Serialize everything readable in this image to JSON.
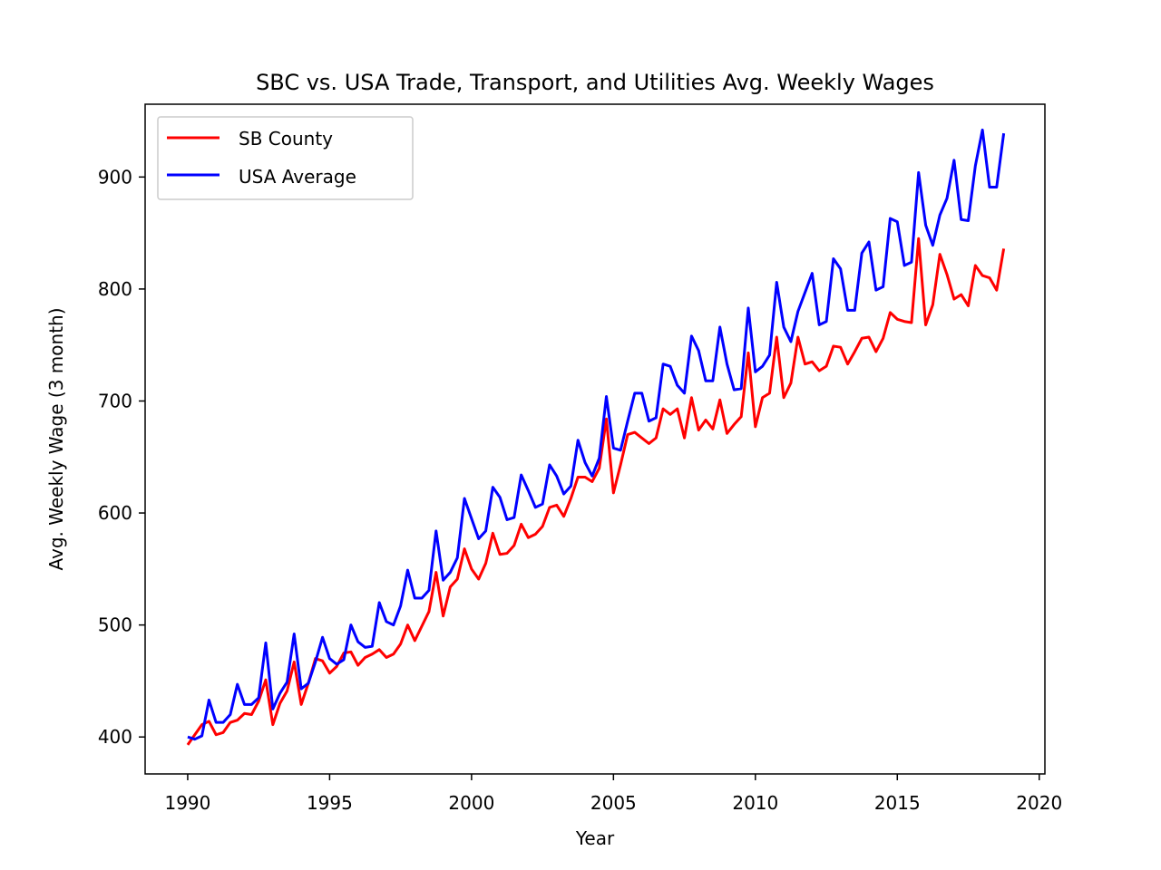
{
  "chart_data": {
    "type": "line",
    "title": "SBC vs. USA Trade, Transport, and Utilities Avg. Weekly Wages",
    "xlabel": "Year",
    "ylabel": "Avg. Weekly Wage (3 month)",
    "xlim": [
      1988.5,
      2020.2
    ],
    "ylim": [
      367,
      965
    ],
    "xticks": [
      1990,
      1995,
      2000,
      2005,
      2010,
      2015,
      2020
    ],
    "yticks": [
      400,
      500,
      600,
      700,
      800,
      900
    ],
    "x_start": 1990.0,
    "x_step": 0.25,
    "legend_position": "top-left",
    "grid": false,
    "series": [
      {
        "name": "SB County",
        "color": "#ff0000",
        "values": [
          393,
          402,
          411,
          414,
          402,
          404,
          413,
          415,
          421,
          420,
          432,
          451,
          411,
          430,
          441,
          467,
          429,
          448,
          470,
          468,
          457,
          463,
          475,
          476,
          464,
          471,
          474,
          478,
          471,
          474,
          483,
          500,
          486,
          499,
          512,
          547,
          508,
          534,
          541,
          568,
          550,
          541,
          555,
          582,
          563,
          564,
          571,
          590,
          578,
          581,
          588,
          605,
          607,
          597,
          613,
          632,
          632,
          628,
          640,
          684,
          618,
          643,
          670,
          672,
          667,
          662,
          667,
          693,
          688,
          693,
          667,
          703,
          674,
          683,
          675,
          701,
          671,
          679,
          686,
          743,
          677,
          703,
          707,
          757,
          703,
          716,
          757,
          733,
          735,
          727,
          731,
          749,
          748,
          733,
          744,
          756,
          757,
          744,
          756,
          779,
          773,
          771,
          770,
          845,
          768,
          786,
          831,
          813,
          791,
          795,
          785,
          821,
          812,
          810,
          799,
          836
        ]
      },
      {
        "name": "USA Average",
        "color": "#0000ff",
        "values": [
          400,
          398,
          401,
          433,
          413,
          413,
          420,
          447,
          429,
          429,
          435,
          484,
          425,
          439,
          449,
          492,
          443,
          448,
          467,
          489,
          470,
          465,
          469,
          500,
          485,
          480,
          481,
          520,
          503,
          500,
          517,
          549,
          524,
          524,
          531,
          584,
          540,
          547,
          560,
          613,
          595,
          577,
          584,
          623,
          614,
          594,
          596,
          634,
          620,
          605,
          608,
          643,
          633,
          617,
          624,
          665,
          645,
          633,
          649,
          704,
          658,
          656,
          682,
          707,
          707,
          682,
          685,
          733,
          731,
          714,
          707,
          758,
          745,
          718,
          718,
          766,
          733,
          710,
          711,
          783,
          726,
          731,
          741,
          806,
          766,
          753,
          780,
          797,
          814,
          768,
          771,
          827,
          818,
          781,
          781,
          832,
          842,
          799,
          802,
          863,
          860,
          821,
          824,
          904,
          857,
          839,
          866,
          881,
          915,
          862,
          861,
          910,
          942,
          891,
          891,
          939
        ]
      }
    ]
  }
}
